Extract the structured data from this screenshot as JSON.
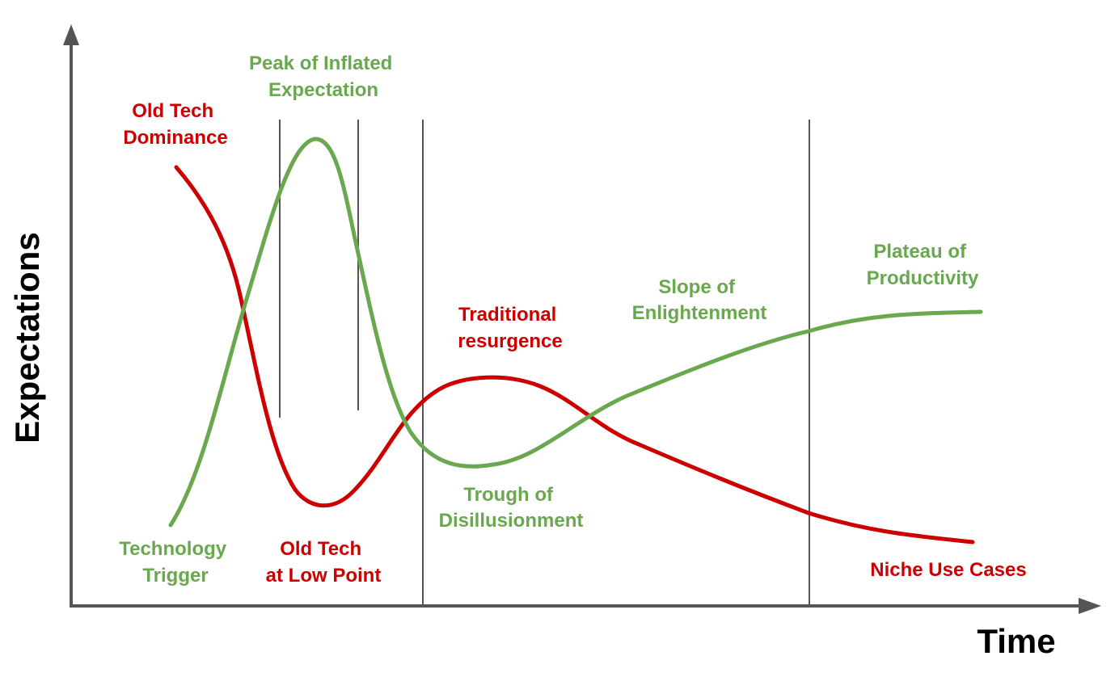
{
  "axes": {
    "x_title": "Time",
    "y_title": "Expectations"
  },
  "labels": {
    "peak": [
      "Peak of Inflated",
      "Expectation"
    ],
    "old_dominance": [
      "Old Tech",
      "Dominance"
    ],
    "plateau": [
      "Plateau of",
      "Productivity"
    ],
    "slope": [
      "Slope of",
      "Enlightenment"
    ],
    "traditional": [
      "Traditional",
      "resurgence"
    ],
    "trough": [
      "Trough of",
      "Disillusionment"
    ],
    "trigger": [
      "Technology",
      "Trigger"
    ],
    "old_low": [
      "Old Tech",
      "at Low Point"
    ],
    "niche": "Niche Use Cases"
  },
  "colors": {
    "hype_curve": "#6aa84f",
    "old_tech_curve": "#cc0000",
    "axis": "#555555",
    "divider": "#555555"
  }
}
